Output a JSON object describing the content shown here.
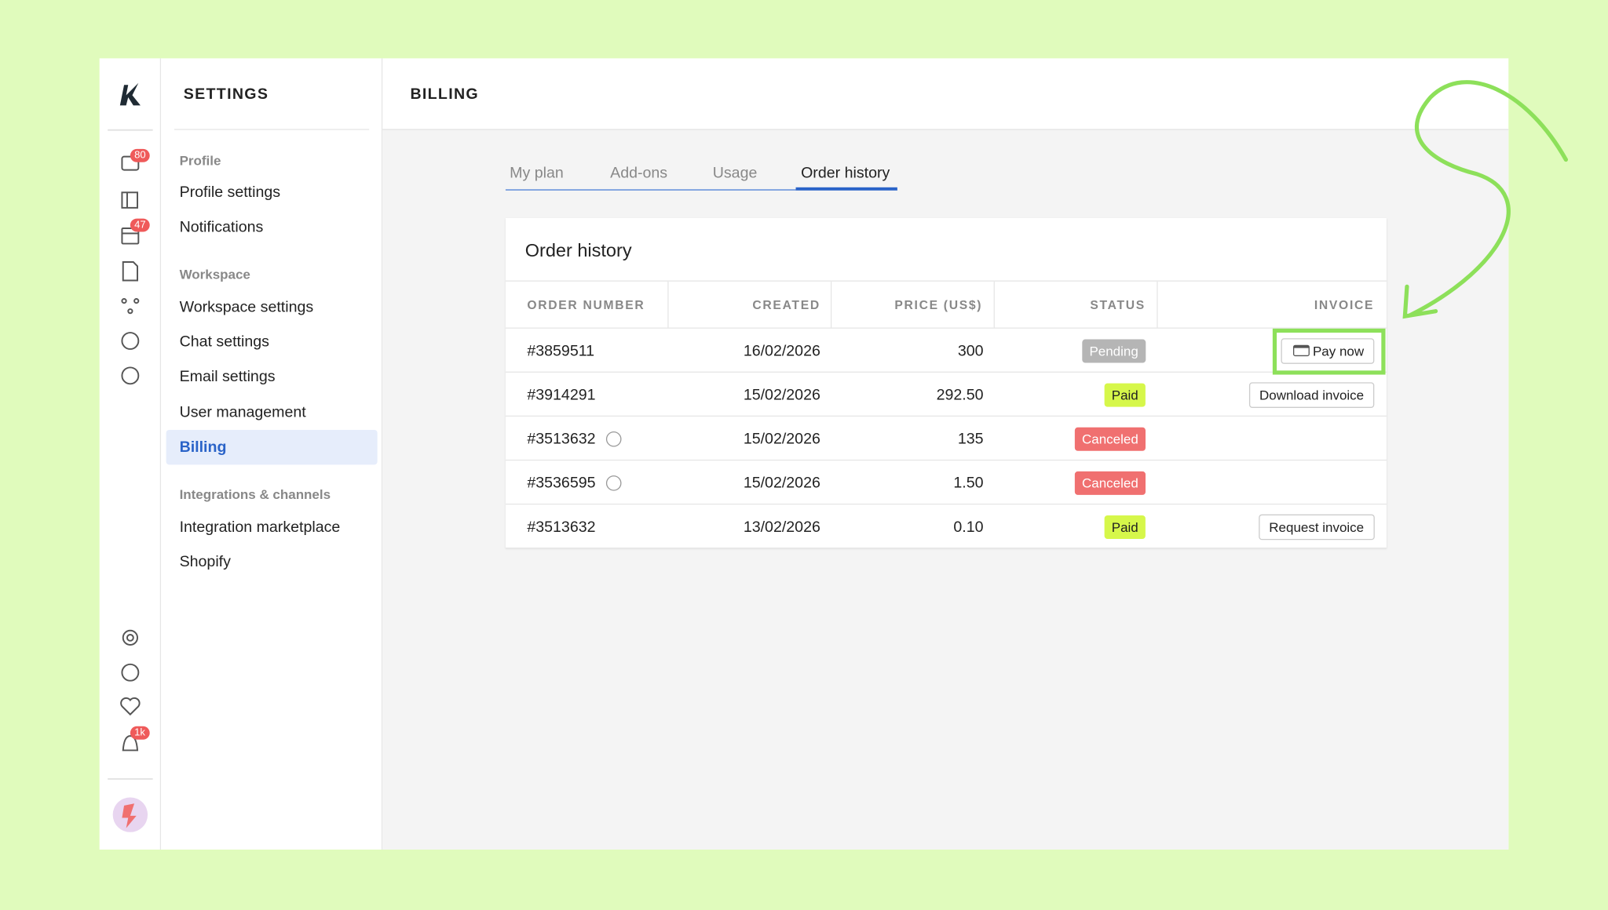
{
  "app": {
    "badges": {
      "chat": "80",
      "calendar": "47",
      "notifications": "1k"
    }
  },
  "settings_nav": {
    "title": "SETTINGS",
    "sections": [
      {
        "heading": "Profile",
        "items": [
          "Profile settings",
          "Notifications"
        ]
      },
      {
        "heading": "Workspace",
        "items": [
          "Workspace settings",
          "Chat settings",
          "Email settings",
          "User management",
          "Billing"
        ]
      },
      {
        "heading": "Integrations & channels",
        "items": [
          "Integration marketplace",
          "Shopify"
        ]
      }
    ]
  },
  "header": {
    "title": "BILLING"
  },
  "tabs": {
    "items": [
      "My plan",
      "Add-ons",
      "Usage",
      "Order history"
    ]
  },
  "card": {
    "title": "Order history"
  },
  "table": {
    "columns": [
      "ORDER NUMBER",
      "CREATED",
      "PRICE (US$)",
      "STATUS",
      "INVOICE"
    ],
    "rows": [
      {
        "order": "#3859511",
        "created": "16/02/2026",
        "price": "300",
        "status": "Pending",
        "invoice": "Pay now"
      },
      {
        "order": "#3914291",
        "created": "15/02/2026",
        "price": "292.50",
        "status": "Paid",
        "invoice": "Download invoice"
      },
      {
        "order": "#3513632",
        "created": "15/02/2026",
        "price": "135",
        "status": "Canceled"
      },
      {
        "order": "#3536595",
        "created": "15/02/2026",
        "price": "1.50",
        "status": "Canceled"
      },
      {
        "order": "#3513632",
        "created": "13/02/2026",
        "price": "0.10",
        "status": "Paid",
        "invoice": "Request invoice"
      }
    ]
  }
}
